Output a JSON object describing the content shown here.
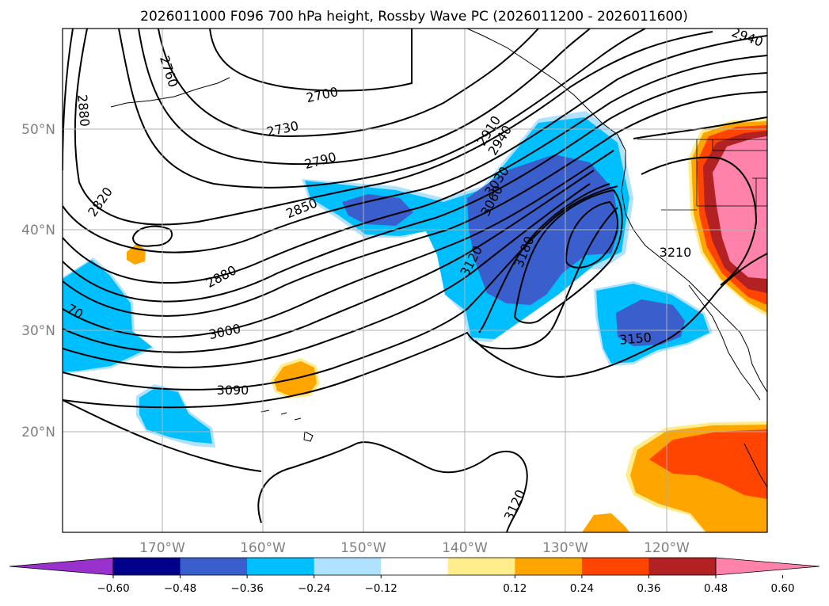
{
  "title": "2026011000 F096 700 hPa height, Rossby Wave PC (2026011200 - 2026011600)",
  "map": {
    "region": "North Pacific",
    "lon_labels": [
      "170°W",
      "160°W",
      "150°W",
      "140°W",
      "130°W",
      "120°W"
    ],
    "lat_labels": [
      "50°N",
      "40°N",
      "30°N",
      "20°N"
    ],
    "grid": true,
    "contour_color": "#000000",
    "height_contour_labels": [
      {
        "id": "c2940a",
        "text": "2940"
      },
      {
        "id": "c2760",
        "text": "2760"
      },
      {
        "id": "c2880a",
        "text": "2880"
      },
      {
        "id": "c2700",
        "text": "2700"
      },
      {
        "id": "c2730",
        "text": "2730"
      },
      {
        "id": "c2910",
        "text": "2910"
      },
      {
        "id": "c2940b",
        "text": "2940"
      },
      {
        "id": "c2790",
        "text": "2790"
      },
      {
        "id": "c2820",
        "text": "2820"
      },
      {
        "id": "c3030",
        "text": "3030"
      },
      {
        "id": "c3060",
        "text": "3060"
      },
      {
        "id": "c2850",
        "text": "2850"
      },
      {
        "id": "c3120a",
        "text": "3120"
      },
      {
        "id": "c3180",
        "text": "3180"
      },
      {
        "id": "c3210",
        "text": "3210"
      },
      {
        "id": "c2880b",
        "text": "2880"
      },
      {
        "id": "c70",
        "text": "70"
      },
      {
        "id": "c3000",
        "text": "3000"
      },
      {
        "id": "c3150",
        "text": "3150"
      },
      {
        "id": "c3090",
        "text": "3090"
      },
      {
        "id": "c3120b",
        "text": "3120"
      }
    ]
  },
  "colorbar": {
    "colors": [
      "#9932cc",
      "#00008b",
      "#3a5fcd",
      "#00bfff",
      "#b0e2ff",
      "#ffffff",
      "#ffec8b",
      "#ffa500",
      "#ff4500",
      "#b22222",
      "#ff82ab"
    ],
    "ticks": [
      "−0.60",
      "−0.48",
      "−0.36",
      "−0.24",
      "−0.12",
      "0.12",
      "0.24",
      "0.36",
      "0.48",
      "0.60"
    ]
  }
}
